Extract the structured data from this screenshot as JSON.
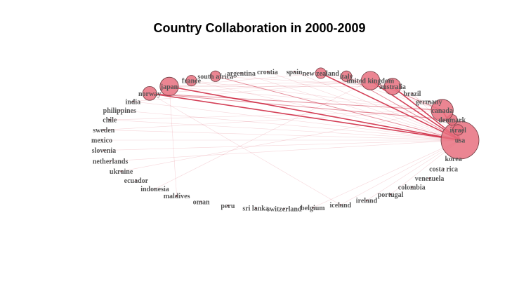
{
  "title": "Country Collaboration in 2000-2009",
  "colors": {
    "edge": "#cc1f3a",
    "node_fill": "#e8707f",
    "node_stroke": "#6e3a40",
    "label": "#555555"
  },
  "nodes": [
    {
      "id": "usa",
      "label": "usa",
      "weight": 20
    },
    {
      "id": "israel",
      "label": "israel",
      "weight": 1
    },
    {
      "id": "denmark",
      "label": "denmark",
      "weight": 1
    },
    {
      "id": "canada",
      "label": "canada",
      "weight": 6
    },
    {
      "id": "germany",
      "label": "germany",
      "weight": 0
    },
    {
      "id": "brazil",
      "label": "brazil",
      "weight": 0
    },
    {
      "id": "australia",
      "label": "australia",
      "weight": 3
    },
    {
      "id": "united-kingdom",
      "label": "united kingdom",
      "weight": 4
    },
    {
      "id": "italy",
      "label": "italy",
      "weight": 1
    },
    {
      "id": "new-zealand",
      "label": "new zealand",
      "weight": 1
    },
    {
      "id": "spain",
      "label": "spain",
      "weight": 0
    },
    {
      "id": "croatia",
      "label": "croatia",
      "weight": 0
    },
    {
      "id": "argentina",
      "label": "argentina",
      "weight": 0
    },
    {
      "id": "south-africa",
      "label": "south africa",
      "weight": 1
    },
    {
      "id": "france",
      "label": "france",
      "weight": 1
    },
    {
      "id": "japan",
      "label": "japan",
      "weight": 4
    },
    {
      "id": "norway",
      "label": "norway",
      "weight": 2
    },
    {
      "id": "india",
      "label": "india",
      "weight": 0
    },
    {
      "id": "philippines",
      "label": "philippines",
      "weight": 0
    },
    {
      "id": "chile",
      "label": "chile",
      "weight": 0
    },
    {
      "id": "sweden",
      "label": "sweden",
      "weight": 0
    },
    {
      "id": "mexico",
      "label": "mexico",
      "weight": 0
    },
    {
      "id": "slovenia",
      "label": "slovenia",
      "weight": 0
    },
    {
      "id": "netherlands",
      "label": "netherlands",
      "weight": 0
    },
    {
      "id": "ukraine",
      "label": "ukraine",
      "weight": 0
    },
    {
      "id": "ecuador",
      "label": "ecuador",
      "weight": 0
    },
    {
      "id": "indonesia",
      "label": "indonesia",
      "weight": 0
    },
    {
      "id": "maldives",
      "label": "maldives",
      "weight": 0
    },
    {
      "id": "oman",
      "label": "oman",
      "weight": 0
    },
    {
      "id": "peru",
      "label": "peru",
      "weight": 0
    },
    {
      "id": "sri-lanka",
      "label": "sri lanka",
      "weight": 0
    },
    {
      "id": "switzerland",
      "label": "switzerland",
      "weight": 0
    },
    {
      "id": "belgium",
      "label": "belgium",
      "weight": 0
    },
    {
      "id": "iceland",
      "label": "iceland",
      "weight": 0
    },
    {
      "id": "ireland",
      "label": "ireland",
      "weight": 0
    },
    {
      "id": "portugal",
      "label": "portugal",
      "weight": 0
    },
    {
      "id": "colombia",
      "label": "colombia",
      "weight": 0
    },
    {
      "id": "venezuela",
      "label": "venezuela",
      "weight": 0
    },
    {
      "id": "costa-rica",
      "label": "costa rica",
      "weight": 0
    },
    {
      "id": "korea",
      "label": "korea",
      "weight": 0
    }
  ],
  "edges": [
    {
      "from": "japan",
      "to": "usa",
      "strength": 3
    },
    {
      "from": "norway",
      "to": "usa",
      "strength": 3
    },
    {
      "from": "norway",
      "to": "denmark",
      "strength": 2
    },
    {
      "from": "norway",
      "to": "canada",
      "strength": 2
    },
    {
      "from": "new-zealand",
      "to": "usa",
      "strength": 3
    },
    {
      "from": "united-kingdom",
      "to": "usa",
      "strength": 3
    },
    {
      "from": "australia",
      "to": "usa",
      "strength": 3
    },
    {
      "from": "canada",
      "to": "usa",
      "strength": 3
    },
    {
      "from": "italy",
      "to": "usa",
      "strength": 2
    },
    {
      "from": "south-africa",
      "to": "usa",
      "strength": 2
    },
    {
      "from": "france",
      "to": "usa",
      "strength": 1
    },
    {
      "from": "argentina",
      "to": "usa",
      "strength": 1
    },
    {
      "from": "croatia",
      "to": "usa",
      "strength": 1
    },
    {
      "from": "spain",
      "to": "usa",
      "strength": 1
    },
    {
      "from": "germany",
      "to": "usa",
      "strength": 1
    },
    {
      "from": "brazil",
      "to": "usa",
      "strength": 1
    },
    {
      "from": "israel",
      "to": "usa",
      "strength": 2
    },
    {
      "from": "denmark",
      "to": "usa",
      "strength": 2
    },
    {
      "from": "mexico",
      "to": "usa",
      "strength": 1
    },
    {
      "from": "sweden",
      "to": "usa",
      "strength": 1
    },
    {
      "from": "chile",
      "to": "usa",
      "strength": 1
    },
    {
      "from": "philippines",
      "to": "usa",
      "strength": 1
    },
    {
      "from": "india",
      "to": "usa",
      "strength": 1
    },
    {
      "from": "japan",
      "to": "canada",
      "strength": 1
    },
    {
      "from": "japan",
      "to": "australia",
      "strength": 1
    },
    {
      "from": "japan",
      "to": "united-kingdom",
      "strength": 1
    },
    {
      "from": "japan",
      "to": "new-zealand",
      "strength": 1
    },
    {
      "from": "norway",
      "to": "united-kingdom",
      "strength": 1
    },
    {
      "from": "norway",
      "to": "iceland",
      "strength": 1
    },
    {
      "from": "united-kingdom",
      "to": "canada",
      "strength": 2
    },
    {
      "from": "united-kingdom",
      "to": "australia",
      "strength": 1
    },
    {
      "from": "australia",
      "to": "canada",
      "strength": 1
    },
    {
      "from": "new-zealand",
      "to": "canada",
      "strength": 1
    },
    {
      "from": "new-zealand",
      "to": "australia",
      "strength": 1
    },
    {
      "from": "iceland",
      "to": "usa",
      "strength": 1
    },
    {
      "from": "ireland",
      "to": "usa",
      "strength": 1
    },
    {
      "from": "belgium",
      "to": "usa",
      "strength": 1
    },
    {
      "from": "portugal",
      "to": "usa",
      "strength": 1
    },
    {
      "from": "netherlands",
      "to": "usa",
      "strength": 1
    },
    {
      "from": "slovenia",
      "to": "usa",
      "strength": 1
    },
    {
      "from": "ukraine",
      "to": "canada",
      "strength": 1
    },
    {
      "from": "indonesia",
      "to": "united-kingdom",
      "strength": 1
    },
    {
      "from": "maldives",
      "to": "japan",
      "strength": 1
    },
    {
      "from": "sweden",
      "to": "canada",
      "strength": 1
    },
    {
      "from": "chile",
      "to": "canada",
      "strength": 1
    },
    {
      "from": "india",
      "to": "united-kingdom",
      "strength": 1
    },
    {
      "from": "france",
      "to": "canada",
      "strength": 1
    },
    {
      "from": "south-africa",
      "to": "australia",
      "strength": 1
    },
    {
      "from": "italy",
      "to": "canada",
      "strength": 1
    },
    {
      "from": "germany",
      "to": "canada",
      "strength": 1
    }
  ]
}
